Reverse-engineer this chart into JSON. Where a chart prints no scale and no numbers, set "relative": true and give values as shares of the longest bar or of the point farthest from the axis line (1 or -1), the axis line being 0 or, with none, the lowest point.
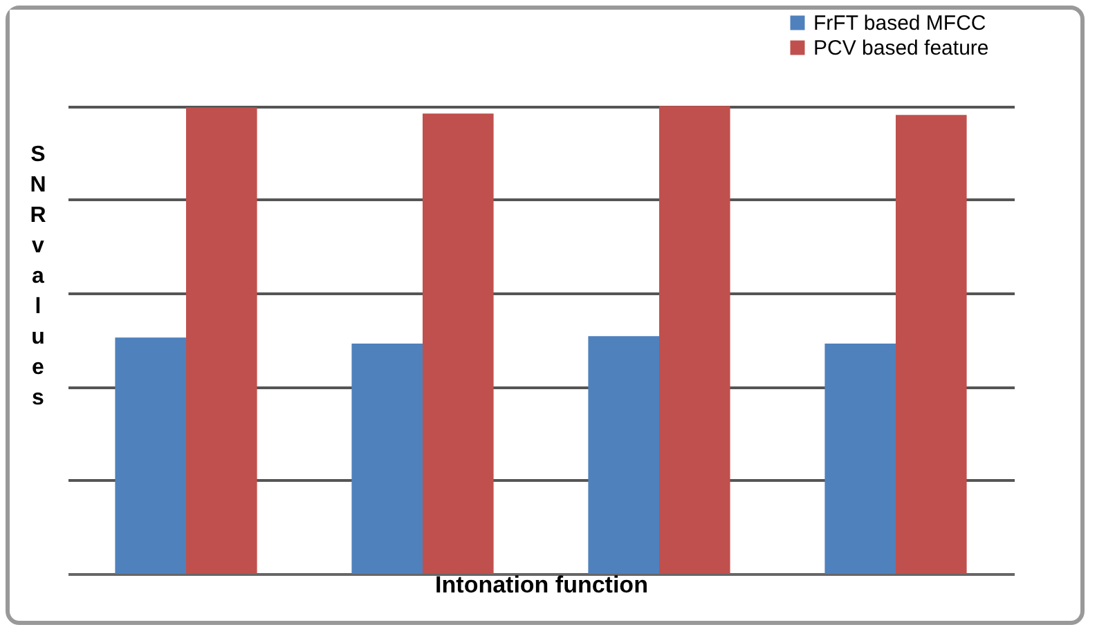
{
  "chart_data": {
    "type": "bar",
    "relative": true,
    "xlabel": "Intonation function",
    "ylabel": "SNR values",
    "categories": [
      null,
      null,
      null,
      null
    ],
    "series": [
      {
        "name": "FrFT based MFCC",
        "color": "#4f81bd",
        "values": [
          0.505,
          0.492,
          0.508,
          0.492
        ]
      },
      {
        "name": "PCV based feature",
        "color": "#c0504d",
        "values": [
          0.997,
          0.984,
          1.0,
          0.981
        ]
      }
    ],
    "grid": "y",
    "legend": "top right"
  }
}
